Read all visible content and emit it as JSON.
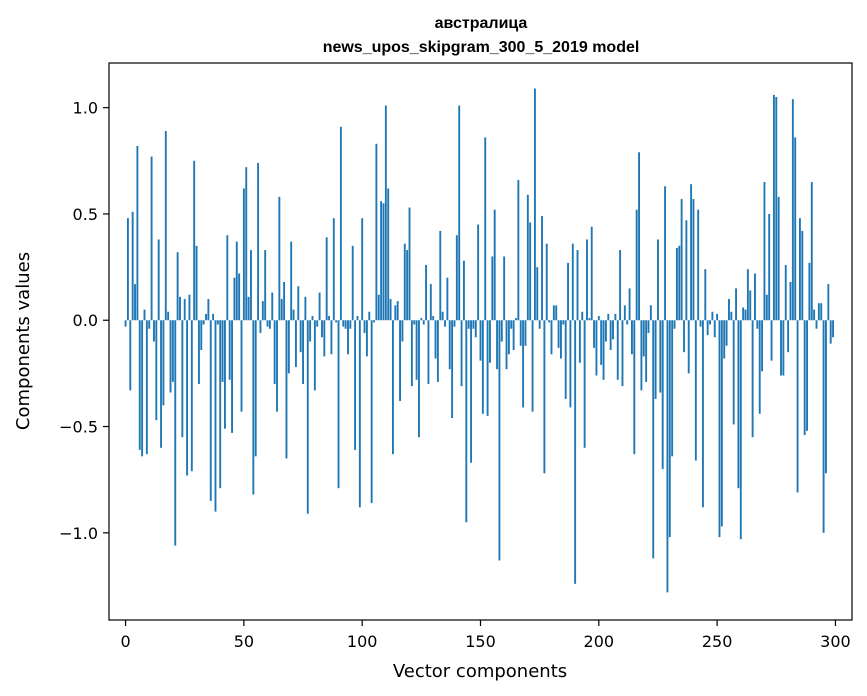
{
  "chart_data": {
    "type": "bar",
    "title": "австралица",
    "subtitle": "news_upos_skipgram_300_5_2019 model",
    "xlabel": "Vector components",
    "ylabel": "Components values",
    "xlim": [
      -7,
      307
    ],
    "ylim": [
      -1.41,
      1.21
    ],
    "xticks": [
      0,
      50,
      100,
      150,
      200,
      250,
      300
    ],
    "xtick_labels": [
      "0",
      "50",
      "100",
      "150",
      "200",
      "250",
      "300"
    ],
    "yticks": [
      -1.0,
      -0.5,
      0.0,
      0.5,
      1.0
    ],
    "ytick_labels": [
      "−1.0",
      "−0.5",
      "0.0",
      "0.5",
      "1.0"
    ],
    "grid": false,
    "bar_color": "#1f77b4",
    "x": [
      0,
      1,
      2,
      3,
      4,
      5,
      6,
      7,
      8,
      9,
      10,
      11,
      12,
      13,
      14,
      15,
      16,
      17,
      18,
      19,
      20,
      21,
      22,
      23,
      24,
      25,
      26,
      27,
      28,
      29,
      30,
      31,
      32,
      33,
      34,
      35,
      36,
      37,
      38,
      39,
      40,
      41,
      42,
      43,
      44,
      45,
      46,
      47,
      48,
      49,
      50,
      51,
      52,
      53,
      54,
      55,
      56,
      57,
      58,
      59,
      60,
      61,
      62,
      63,
      64,
      65,
      66,
      67,
      68,
      69,
      70,
      71,
      72,
      73,
      74,
      75,
      76,
      77,
      78,
      79,
      80,
      81,
      82,
      83,
      84,
      85,
      86,
      87,
      88,
      89,
      90,
      91,
      92,
      93,
      94,
      95,
      96,
      97,
      98,
      99,
      100,
      101,
      102,
      103,
      104,
      105,
      106,
      107,
      108,
      109,
      110,
      111,
      112,
      113,
      114,
      115,
      116,
      117,
      118,
      119,
      120,
      121,
      122,
      123,
      124,
      125,
      126,
      127,
      128,
      129,
      130,
      131,
      132,
      133,
      134,
      135,
      136,
      137,
      138,
      139,
      140,
      141,
      142,
      143,
      144,
      145,
      146,
      147,
      148,
      149,
      150,
      151,
      152,
      153,
      154,
      155,
      156,
      157,
      158,
      159,
      160,
      161,
      162,
      163,
      164,
      165,
      166,
      167,
      168,
      169,
      170,
      171,
      172,
      173,
      174,
      175,
      176,
      177,
      178,
      179,
      180,
      181,
      182,
      183,
      184,
      185,
      186,
      187,
      188,
      189,
      190,
      191,
      192,
      193,
      194,
      195,
      196,
      197,
      198,
      199,
      200,
      201,
      202,
      203,
      204,
      205,
      206,
      207,
      208,
      209,
      210,
      211,
      212,
      213,
      214,
      215,
      216,
      217,
      218,
      219,
      220,
      221,
      222,
      223,
      224,
      225,
      226,
      227,
      228,
      229,
      230,
      231,
      232,
      233,
      234,
      235,
      236,
      237,
      238,
      239,
      240,
      241,
      242,
      243,
      244,
      245,
      246,
      247,
      248,
      249,
      250,
      251,
      252,
      253,
      254,
      255,
      256,
      257,
      258,
      259,
      260,
      261,
      262,
      263,
      264,
      265,
      266,
      267,
      268,
      269,
      270,
      271,
      272,
      273,
      274,
      275,
      276,
      277,
      278,
      279,
      280,
      281,
      282,
      283,
      284,
      285,
      286,
      287,
      288,
      289,
      290,
      291,
      292,
      293,
      294,
      295,
      296,
      297,
      298,
      299
    ],
    "values": [
      -0.03,
      0.48,
      -0.33,
      0.51,
      0.17,
      0.82,
      -0.61,
      -0.64,
      0.05,
      -0.63,
      -0.04,
      0.77,
      -0.1,
      -0.47,
      0.38,
      -0.6,
      -0.4,
      0.89,
      0.04,
      -0.34,
      -0.29,
      -1.06,
      0.32,
      0.11,
      -0.55,
      0.1,
      -0.73,
      0.12,
      -0.71,
      0.75,
      0.35,
      -0.3,
      -0.14,
      -0.02,
      0.03,
      0.1,
      -0.85,
      0.03,
      -0.9,
      -0.02,
      -0.79,
      -0.29,
      -0.51,
      0.4,
      -0.28,
      -0.53,
      0.2,
      0.37,
      0.22,
      -0.43,
      0.62,
      0.72,
      0.11,
      0.33,
      -0.82,
      -0.64,
      0.74,
      -0.06,
      0.09,
      0.33,
      -0.03,
      -0.04,
      0.13,
      -0.3,
      -0.43,
      0.58,
      0.1,
      0.18,
      -0.65,
      -0.25,
      0.37,
      0.05,
      -0.22,
      0.16,
      -0.15,
      -0.3,
      0.11,
      -0.91,
      -0.1,
      0.02,
      -0.33,
      -0.03,
      0.13,
      -0.08,
      -0.17,
      0.39,
      0.02,
      -0.16,
      0.48,
      -0.01,
      -0.79,
      0.91,
      -0.03,
      -0.04,
      -0.16,
      -0.04,
      0.35,
      -0.61,
      0.02,
      -0.88,
      0.48,
      -0.06,
      -0.17,
      0.04,
      -0.86,
      -0.01,
      0.83,
      0.12,
      0.56,
      0.55,
      1.01,
      0.62,
      0.1,
      -0.63,
      0.07,
      0.09,
      -0.38,
      -0.1,
      0.36,
      0.33,
      0.53,
      -0.31,
      -0.02,
      -0.28,
      -0.55,
      0.01,
      -0.02,
      0.26,
      -0.3,
      0.17,
      0.02,
      -0.18,
      -0.29,
      0.42,
      0.04,
      -0.03,
      0.2,
      -0.23,
      -0.46,
      -0.03,
      0.4,
      1.01,
      -0.31,
      0.28,
      -0.95,
      -0.04,
      -0.67,
      -0.04,
      -0.08,
      0.45,
      -0.19,
      -0.44,
      0.86,
      -0.45,
      -0.2,
      0.3,
      0.52,
      -0.23,
      -1.13,
      -0.1,
      0.3,
      -0.23,
      -0.16,
      -0.04,
      -0.14,
      0.01,
      0.66,
      -0.12,
      -0.41,
      -0.12,
      0.59,
      0.46,
      -0.43,
      1.09,
      0.25,
      -0.04,
      0.49,
      -0.72,
      0.36,
      -0.01,
      -0.16,
      0.07,
      0.07,
      -0.13,
      -0.18,
      -0.02,
      -0.37,
      0.27,
      -0.41,
      0.36,
      -1.24,
      0.33,
      -0.2,
      0.04,
      -0.6,
      0.38,
      0.01,
      0.44,
      -0.13,
      -0.26,
      0.02,
      -0.21,
      -0.28,
      -0.1,
      0.03,
      -0.14,
      -0.09,
      0.03,
      -0.28,
      0.33,
      -0.31,
      0.07,
      -0.02,
      0.15,
      -0.16,
      -0.63,
      0.52,
      0.79,
      -0.33,
      -0.17,
      -0.29,
      -0.06,
      0.07,
      -1.12,
      -0.37,
      0.38,
      -0.34,
      -0.7,
      0.63,
      -1.28,
      -1.02,
      -0.64,
      -0.04,
      0.34,
      0.35,
      0.57,
      -0.15,
      0.47,
      -0.25,
      0.64,
      0.57,
      -0.66,
      0.52,
      -0.03,
      -0.88,
      0.24,
      -0.07,
      -0.02,
      0.04,
      -0.08,
      0.03,
      -1.02,
      -0.97,
      -0.18,
      -0.12,
      0.1,
      0.04,
      -0.49,
      0.15,
      -0.79,
      -1.03,
      0.06,
      0.05,
      0.24,
      0.14,
      -0.55,
      0.22,
      -0.04,
      -0.44,
      -0.24,
      0.65,
      0.12,
      0.5,
      -0.19,
      1.06,
      1.05,
      0.58,
      -0.26,
      -0.26,
      0.26,
      -0.15,
      0.18,
      1.04,
      0.86,
      -0.81,
      0.48,
      0.42,
      -0.54,
      -0.52,
      0.27,
      0.65,
      0.05,
      -0.04,
      0.08,
      0.08,
      -1.0,
      -0.72,
      0.17,
      -0.11,
      -0.08
    ]
  }
}
